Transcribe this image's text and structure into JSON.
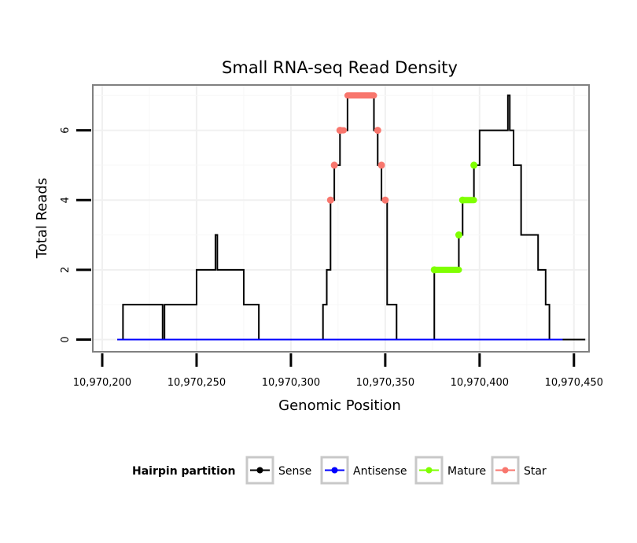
{
  "chart_data": {
    "type": "line",
    "title": "Small RNA-seq Read Density",
    "xlabel": "Genomic Position",
    "ylabel": "Total Reads",
    "xlim": [
      10970195,
      10970458
    ],
    "ylim": [
      -0.35,
      7.3
    ],
    "x_ticks": [
      10970200,
      10970250,
      10970300,
      10970350,
      10970400,
      10970450
    ],
    "x_tick_labels": [
      "10,970,200",
      "10,970,250",
      "10,970,300",
      "10,970,350",
      "10,970,400",
      "10,970,450"
    ],
    "y_ticks": [
      0,
      2,
      4,
      6
    ],
    "y_tick_labels": [
      "0",
      "2",
      "4",
      "6"
    ],
    "grid": true,
    "legend": {
      "title": "Hairpin partition",
      "position": "bottom",
      "entries": [
        "Sense",
        "Antisense",
        "Mature",
        "Star"
      ]
    },
    "series": [
      {
        "name": "Sense",
        "color": "#000000",
        "step": [
          [
            10970208,
            0
          ],
          [
            10970211,
            1
          ],
          [
            10970232,
            0
          ],
          [
            10970233,
            1
          ],
          [
            10970250,
            2
          ],
          [
            10970260,
            3
          ],
          [
            10970261,
            2
          ],
          [
            10970275,
            1
          ],
          [
            10970283,
            0
          ],
          [
            10970317,
            1
          ],
          [
            10970319,
            2
          ],
          [
            10970321,
            4
          ],
          [
            10970323,
            5
          ],
          [
            10970326,
            6
          ],
          [
            10970330,
            7
          ],
          [
            10970344,
            6
          ],
          [
            10970346,
            5
          ],
          [
            10970348,
            4
          ],
          [
            10970351,
            1
          ],
          [
            10970356,
            0
          ],
          [
            10970376,
            2
          ],
          [
            10970389,
            3
          ],
          [
            10970391,
            4
          ],
          [
            10970397,
            5
          ],
          [
            10970400,
            6
          ],
          [
            10970415,
            7
          ],
          [
            10970416,
            6
          ],
          [
            10970418,
            5
          ],
          [
            10970422,
            3
          ],
          [
            10970431,
            2
          ],
          [
            10970435,
            1
          ],
          [
            10970437,
            0
          ]
        ],
        "x_end": 10970456
      },
      {
        "name": "Antisense",
        "color": "#0000ff",
        "step": [
          [
            10970208,
            0
          ]
        ],
        "x_end": 10970444
      },
      {
        "name": "Mature",
        "color": "#7fff00",
        "points": [
          [
            10970376,
            2
          ],
          [
            10970389,
            3
          ],
          [
            10970391,
            4
          ],
          [
            10970397,
            5
          ]
        ],
        "runs": [
          [
            10970376,
            10970389,
            2
          ],
          [
            10970391,
            10970397,
            4
          ]
        ]
      },
      {
        "name": "Star",
        "color": "#f8766d",
        "points": [
          [
            10970321,
            4
          ],
          [
            10970323,
            5
          ],
          [
            10970326,
            6
          ],
          [
            10970346,
            6
          ],
          [
            10970348,
            5
          ],
          [
            10970350,
            4
          ]
        ],
        "runs": [
          [
            10970326,
            10970328,
            6
          ],
          [
            10970330,
            10970344,
            7
          ]
        ]
      }
    ]
  }
}
